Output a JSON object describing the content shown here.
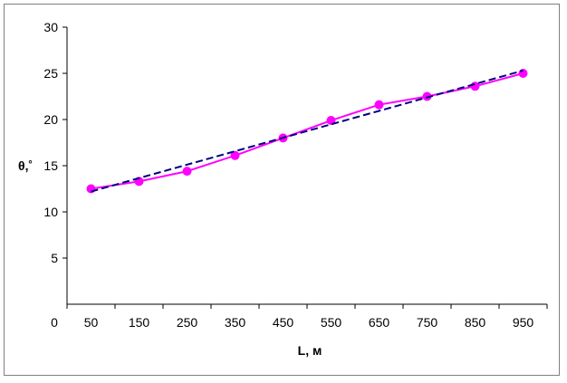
{
  "chart_data": {
    "type": "line",
    "xlabel": "L, м",
    "ylabel": "θ,˚",
    "xlim": [
      0,
      1000
    ],
    "ylim": [
      0,
      30
    ],
    "x_ticks": [
      0,
      50,
      150,
      250,
      350,
      450,
      550,
      650,
      750,
      850,
      950
    ],
    "y_ticks": [
      5,
      10,
      15,
      20,
      25,
      30
    ],
    "grid": false,
    "legend": "none",
    "series": [
      {
        "color": "#ff00ff",
        "style": "solid-with-markers",
        "x": [
          50,
          150,
          250,
          350,
          450,
          550,
          650,
          750,
          850,
          950
        ],
        "y": [
          12.5,
          13.3,
          14.4,
          16.1,
          18.0,
          19.9,
          21.6,
          22.5,
          23.6,
          25.0
        ]
      },
      {
        "color": "#000080",
        "style": "dashed",
        "x": [
          50,
          950
        ],
        "y": [
          12.2,
          25.3
        ]
      }
    ]
  }
}
